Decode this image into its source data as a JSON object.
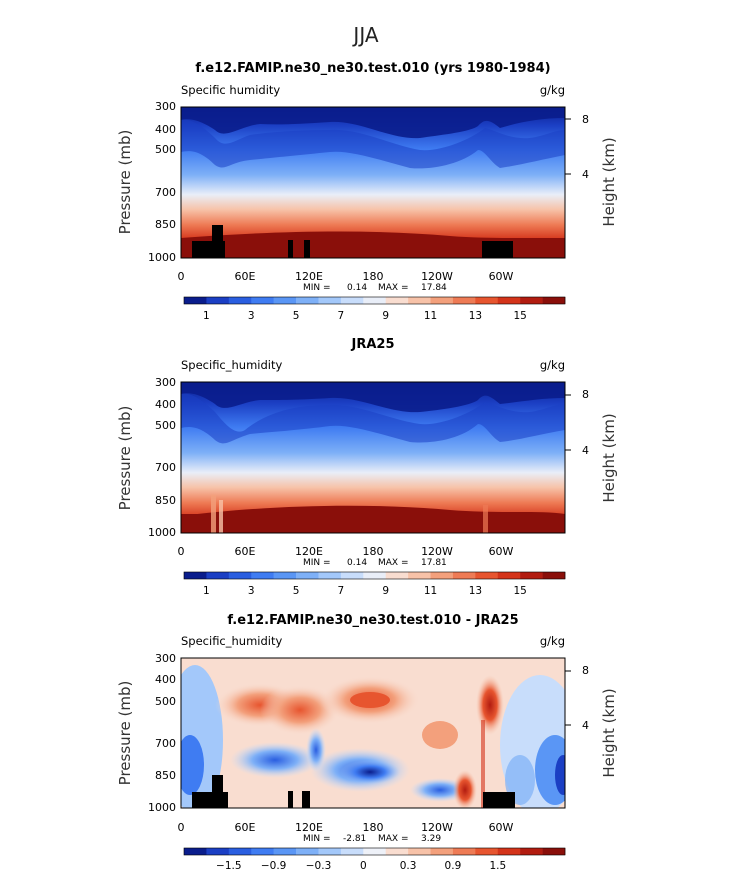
{
  "page_title": "JJA",
  "chart_data": [
    {
      "type": "heatmap",
      "title": "f.e12.FAMIP.ne30_ne30.test.010 (yrs 1980-1984)",
      "field_label": "Specific humidity",
      "units": "g/kg",
      "ylabel": "Pressure (mb)",
      "y2label": "Height (km)",
      "xticks": [
        "0",
        "60E",
        "120E",
        "180",
        "120W",
        "60W"
      ],
      "yticks": [
        "300",
        "400",
        "500",
        "700",
        "850",
        "1000"
      ],
      "y2ticks": [
        "8",
        "4"
      ],
      "stats": {
        "min_label": "MIN =",
        "min": "0.14",
        "max_label": "MAX =",
        "max": "17.84"
      },
      "colorbar": {
        "colors": [
          "#0a1d8c",
          "#1b3fc4",
          "#2a5ee0",
          "#3f7cf2",
          "#5a96f5",
          "#7eb0f7",
          "#a3c8fa",
          "#c8ddfb",
          "#e9eef8",
          "#f9ddd0",
          "#f7c2a8",
          "#f3a07c",
          "#ee7b55",
          "#e7552f",
          "#d4341a",
          "#b21c10",
          "#8a0f0a"
        ],
        "labels": [
          "1",
          "3",
          "5",
          "7",
          "9",
          "11",
          "13",
          "15"
        ]
      }
    },
    {
      "type": "heatmap",
      "title": "JRA25",
      "field_label": "Specific_humidity",
      "units": "g/kg",
      "ylabel": "Pressure (mb)",
      "y2label": "Height (km)",
      "xticks": [
        "0",
        "60E",
        "120E",
        "180",
        "120W",
        "60W"
      ],
      "yticks": [
        "300",
        "400",
        "500",
        "700",
        "850",
        "1000"
      ],
      "y2ticks": [
        "8",
        "4"
      ],
      "stats": {
        "min_label": "MIN =",
        "min": "0.14",
        "max_label": "MAX =",
        "max": "17.81"
      },
      "colorbar": {
        "colors": [
          "#0a1d8c",
          "#1b3fc4",
          "#2a5ee0",
          "#3f7cf2",
          "#5a96f5",
          "#7eb0f7",
          "#a3c8fa",
          "#c8ddfb",
          "#e9eef8",
          "#f9ddd0",
          "#f7c2a8",
          "#f3a07c",
          "#ee7b55",
          "#e7552f",
          "#d4341a",
          "#b21c10",
          "#8a0f0a"
        ],
        "labels": [
          "1",
          "3",
          "5",
          "7",
          "9",
          "11",
          "13",
          "15"
        ]
      }
    },
    {
      "type": "heatmap",
      "title": "f.e12.FAMIP.ne30_ne30.test.010 - JRA25",
      "field_label": "Specific_humidity",
      "units": "g/kg",
      "ylabel": "Pressure (mb)",
      "y2label": "Height (km)",
      "xticks": [
        "0",
        "60E",
        "120E",
        "180",
        "120W",
        "60W"
      ],
      "yticks": [
        "300",
        "400",
        "500",
        "700",
        "850",
        "1000"
      ],
      "y2ticks": [
        "8",
        "4"
      ],
      "stats": {
        "min_label": "MIN =",
        "min": "-2.81",
        "max_label": "MAX =",
        "max": "3.29"
      },
      "colorbar": {
        "colors": [
          "#0a1d8c",
          "#1b3fc4",
          "#2a5ee0",
          "#3f7cf2",
          "#5a96f5",
          "#7eb0f7",
          "#a3c8fa",
          "#c8ddfb",
          "#eef1f8",
          "#f9ddd0",
          "#f7c2a8",
          "#f3a07c",
          "#ee7b55",
          "#e7552f",
          "#d4341a",
          "#b21c10",
          "#8a0f0a"
        ],
        "labels": [
          "−1.5",
          "−0.9",
          "−0.3",
          "0",
          "0.3",
          "0.9",
          "1.5"
        ]
      }
    }
  ]
}
